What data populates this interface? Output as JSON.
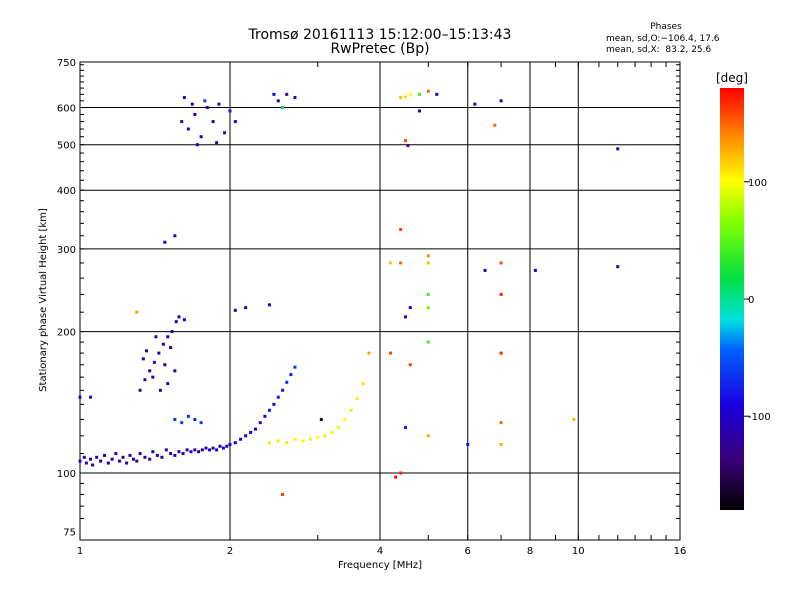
{
  "header": {
    "title_line1": "Tromsø 20161113 15:12:00–15:13:43",
    "title_line2": "RwPretec (Bp)"
  },
  "phase_info": {
    "heading": "Phases",
    "line_o": "mean, sd,O:−106.4, 17.6",
    "line_x": "mean, sd,X:  83.2, 25.6"
  },
  "chart_data": {
    "type": "scatter",
    "xlabel": "Frequency [MHz]",
    "ylabel": "Stationary phase Virtual Height [km]",
    "xscale": "log",
    "yscale": "log",
    "xlim": [
      1,
      16
    ],
    "ylim": [
      72,
      750
    ],
    "x_ticks": [
      1,
      2,
      4,
      6,
      8,
      10,
      16
    ],
    "y_ticks": [
      75,
      100,
      200,
      300,
      400,
      500,
      600,
      750
    ],
    "grid": true,
    "colorbar": {
      "label": "[deg]",
      "range": [
        -180,
        180
      ],
      "ticks": [
        100,
        0,
        -100
      ]
    },
    "points": [
      [
        1.0,
        106,
        -110
      ],
      [
        1.02,
        108,
        -115
      ],
      [
        1.03,
        105,
        -120
      ],
      [
        1.05,
        107,
        -100
      ],
      [
        1.06,
        104,
        -125
      ],
      [
        1.08,
        108,
        -105
      ],
      [
        1.1,
        106,
        -110
      ],
      [
        1.12,
        109,
        -130
      ],
      [
        1.14,
        105,
        -95
      ],
      [
        1.16,
        107,
        -115
      ],
      [
        1.18,
        110,
        -120
      ],
      [
        1.2,
        106,
        -100
      ],
      [
        1.22,
        108,
        -140
      ],
      [
        1.24,
        105,
        -110
      ],
      [
        1.26,
        109,
        -120
      ],
      [
        1.28,
        107,
        -95
      ],
      [
        1.3,
        106,
        -125
      ],
      [
        1.32,
        110,
        -105
      ],
      [
        1.35,
        108,
        -115
      ],
      [
        1.38,
        107,
        -120
      ],
      [
        1.4,
        111,
        -100
      ],
      [
        1.43,
        109,
        -130
      ],
      [
        1.46,
        108,
        -110
      ],
      [
        1.49,
        112,
        -120
      ],
      [
        1.52,
        110,
        -105
      ],
      [
        1.55,
        109,
        -115
      ],
      [
        1.58,
        111,
        -100
      ],
      [
        1.61,
        110,
        -125
      ],
      [
        1.64,
        112,
        -110
      ],
      [
        1.67,
        111,
        -95
      ],
      [
        1.7,
        112,
        -120
      ],
      [
        1.73,
        111,
        -105
      ],
      [
        1.76,
        112,
        -115
      ],
      [
        1.79,
        113,
        -100
      ],
      [
        1.82,
        112,
        -110
      ],
      [
        1.85,
        113,
        -120
      ],
      [
        1.88,
        112,
        -105
      ],
      [
        1.91,
        114,
        -115
      ],
      [
        1.94,
        113,
        -100
      ],
      [
        1.97,
        114,
        -110
      ],
      [
        2.0,
        115,
        -105
      ],
      [
        2.05,
        116,
        -100
      ],
      [
        2.1,
        118,
        -95
      ],
      [
        2.15,
        120,
        -100
      ],
      [
        2.2,
        122,
        -90
      ],
      [
        2.25,
        124,
        -95
      ],
      [
        2.3,
        128,
        -85
      ],
      [
        2.35,
        132,
        -90
      ],
      [
        2.4,
        136,
        -80
      ],
      [
        2.45,
        140,
        -85
      ],
      [
        2.5,
        145,
        -75
      ],
      [
        2.55,
        150,
        -80
      ],
      [
        2.6,
        156,
        -70
      ],
      [
        2.65,
        162,
        -75
      ],
      [
        2.7,
        168,
        -65
      ],
      [
        2.4,
        116,
        95
      ],
      [
        2.5,
        117,
        105
      ],
      [
        2.6,
        116,
        110
      ],
      [
        2.7,
        118,
        100
      ],
      [
        2.8,
        117,
        95
      ],
      [
        2.9,
        118,
        105
      ],
      [
        3.0,
        119,
        100
      ],
      [
        3.1,
        120,
        110
      ],
      [
        3.2,
        122,
        105
      ],
      [
        3.3,
        125,
        95
      ],
      [
        3.4,
        130,
        100
      ],
      [
        3.5,
        136,
        90
      ],
      [
        3.6,
        144,
        95
      ],
      [
        3.7,
        155,
        110
      ],
      [
        1.32,
        150,
        -120
      ],
      [
        1.35,
        158,
        -110
      ],
      [
        1.38,
        165,
        -125
      ],
      [
        1.41,
        172,
        -115
      ],
      [
        1.44,
        180,
        -130
      ],
      [
        1.47,
        188,
        -120
      ],
      [
        1.5,
        195,
        -110
      ],
      [
        1.36,
        182,
        -120
      ],
      [
        1.4,
        160,
        -125
      ],
      [
        1.45,
        150,
        -115
      ],
      [
        1.48,
        170,
        -130
      ],
      [
        1.52,
        185,
        -115
      ],
      [
        1.55,
        165,
        -120
      ],
      [
        1.34,
        175,
        -125
      ],
      [
        1.42,
        195,
        -110
      ],
      [
        1.5,
        155,
        -120
      ],
      [
        1.53,
        200,
        -115
      ],
      [
        1.56,
        210,
        -120
      ],
      [
        1.58,
        215,
        -110
      ],
      [
        1.62,
        212,
        -105
      ],
      [
        1.55,
        130,
        -60
      ],
      [
        1.6,
        128,
        -55
      ],
      [
        1.65,
        132,
        -65
      ],
      [
        1.7,
        130,
        -70
      ],
      [
        1.75,
        128,
        -60
      ],
      [
        1.6,
        560,
        -120
      ],
      [
        1.65,
        540,
        -110
      ],
      [
        1.7,
        580,
        -125
      ],
      [
        1.75,
        520,
        -115
      ],
      [
        1.8,
        600,
        -120
      ],
      [
        1.85,
        560,
        -110
      ],
      [
        1.9,
        610,
        -125
      ],
      [
        1.95,
        530,
        -120
      ],
      [
        2.0,
        590,
        -80
      ],
      [
        1.72,
        500,
        -115
      ],
      [
        1.62,
        630,
        -110
      ],
      [
        1.78,
        620,
        -60
      ],
      [
        1.88,
        505,
        -120
      ],
      [
        1.68,
        610,
        -120
      ],
      [
        2.05,
        560,
        -100
      ],
      [
        2.5,
        620,
        -110
      ],
      [
        2.55,
        600,
        10
      ],
      [
        2.6,
        640,
        -120
      ],
      [
        2.7,
        630,
        -110
      ],
      [
        2.45,
        640,
        -95
      ],
      [
        1.55,
        320,
        -100
      ],
      [
        1.48,
        310,
        -110
      ],
      [
        2.05,
        222,
        -110
      ],
      [
        2.15,
        225,
        -100
      ],
      [
        2.4,
        228,
        -90
      ],
      [
        4.4,
        630,
        120
      ],
      [
        4.5,
        632,
        110
      ],
      [
        4.6,
        640,
        100
      ],
      [
        4.8,
        640,
        40
      ],
      [
        5.0,
        650,
        150
      ],
      [
        5.2,
        640,
        -110
      ],
      [
        4.8,
        590,
        -120
      ],
      [
        4.55,
        498,
        -130
      ],
      [
        4.5,
        510,
        160
      ],
      [
        4.4,
        330,
        160
      ],
      [
        4.2,
        280,
        120
      ],
      [
        4.4,
        280,
        150
      ],
      [
        5.0,
        290,
        140
      ],
      [
        5.0,
        280,
        120
      ],
      [
        4.5,
        215,
        -120
      ],
      [
        4.6,
        225,
        -110
      ],
      [
        5.0,
        240,
        40
      ],
      [
        5.0,
        225,
        60
      ],
      [
        5.0,
        190,
        40
      ],
      [
        4.2,
        180,
        160
      ],
      [
        4.6,
        170,
        160
      ],
      [
        4.5,
        125,
        -80
      ],
      [
        5.0,
        120,
        130
      ],
      [
        4.4,
        100,
        170
      ],
      [
        6.0,
        115,
        -80
      ],
      [
        6.5,
        270,
        -110
      ],
      [
        7.0,
        620,
        -120
      ],
      [
        7.0,
        280,
        160
      ],
      [
        7.0,
        240,
        170
      ],
      [
        7.0,
        180,
        170
      ],
      [
        7.0,
        115,
        130
      ],
      [
        7.0,
        128,
        150
      ],
      [
        9.8,
        130,
        120
      ],
      [
        12.0,
        490,
        -120
      ],
      [
        12.0,
        275,
        -120
      ],
      [
        8.2,
        270,
        -100
      ],
      [
        6.2,
        610,
        -120
      ],
      [
        6.8,
        550,
        150
      ],
      [
        2.55,
        90,
        160
      ],
      [
        3.05,
        130,
        -150
      ],
      [
        3.8,
        180,
        130
      ],
      [
        4.3,
        98,
        175
      ],
      [
        1.0,
        145,
        -100
      ],
      [
        1.05,
        145,
        -110
      ],
      [
        1.3,
        220,
        130
      ]
    ]
  }
}
